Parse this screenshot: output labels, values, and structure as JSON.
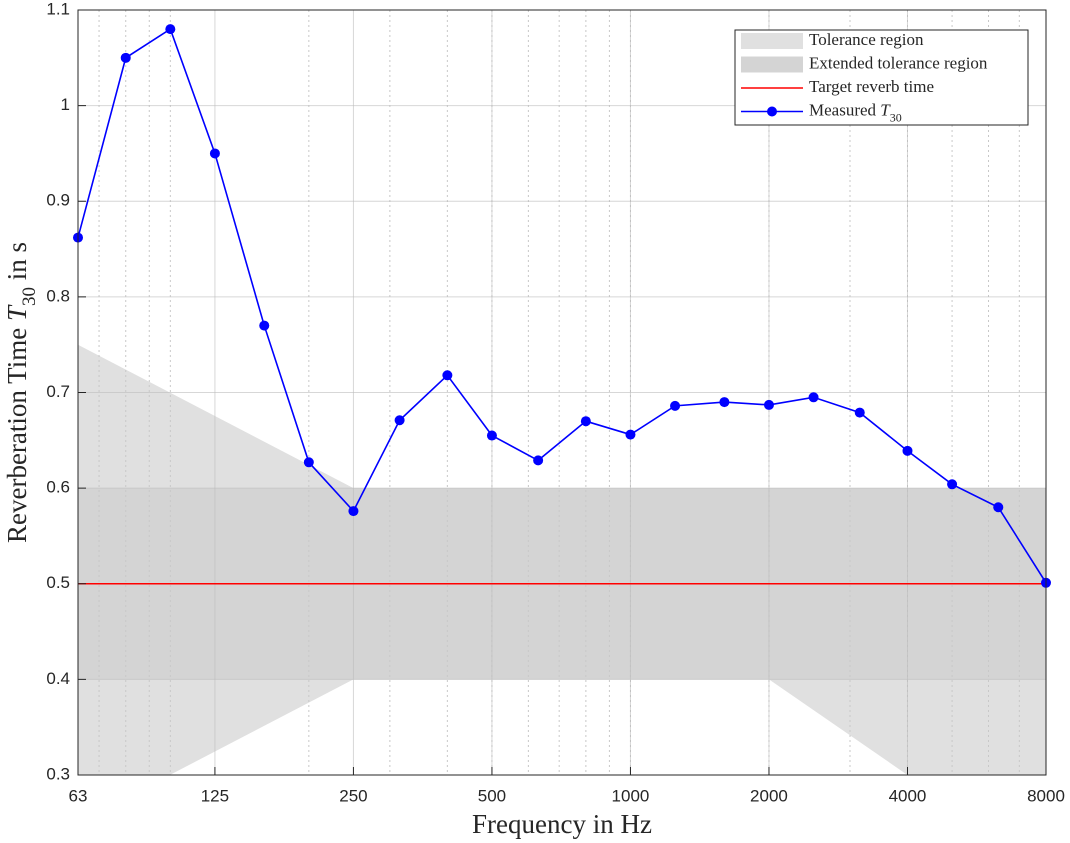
{
  "chart_data": {
    "type": "line",
    "xlabel": "Frequency in Hz",
    "ylabel": [
      "Reverberation Time ",
      "T",
      "30",
      " in s"
    ],
    "xscale": "log",
    "xlim": [
      63,
      8000
    ],
    "ylim": [
      0.3,
      1.1
    ],
    "xticks": [
      63,
      125,
      250,
      500,
      1000,
      2000,
      4000,
      8000
    ],
    "yticks": [
      0.3,
      0.4,
      0.5,
      0.6,
      0.7,
      0.8,
      0.9,
      1,
      1.1
    ],
    "grid": true,
    "minor_grid": true,
    "legend": "upper right",
    "regions": [
      {
        "name": "Tolerance region",
        "color": "#e0e0e0",
        "x": [
          63,
          250,
          2000,
          8000
        ],
        "upper": [
          0.75,
          0.6,
          0.6,
          0.6
        ],
        "lower": [
          0.25,
          0.4,
          0.4,
          0.2
        ]
      },
      {
        "name": "Extended tolerance region",
        "color": "#d4d4d4",
        "x": [
          63,
          8000
        ],
        "upper": [
          0.6,
          0.6
        ],
        "lower": [
          0.4,
          0.4
        ]
      }
    ],
    "series": [
      {
        "name": "Target reverb time",
        "color": "#ff0000",
        "markers": false,
        "x": [
          63,
          8000
        ],
        "values": [
          0.5,
          0.5
        ]
      },
      {
        "name": [
          "Measured ",
          "T",
          "30"
        ],
        "color": "#0000ff",
        "markers": true,
        "x": [
          63,
          80,
          100,
          125,
          160,
          200,
          250,
          315,
          400,
          500,
          630,
          800,
          1000,
          1250,
          1600,
          2000,
          2500,
          3150,
          4000,
          5000,
          6300,
          8000
        ],
        "values": [
          0.862,
          1.05,
          1.08,
          0.95,
          0.77,
          0.627,
          0.576,
          0.671,
          0.718,
          0.655,
          0.629,
          0.67,
          0.656,
          0.686,
          0.69,
          0.687,
          0.695,
          0.679,
          0.639,
          0.604,
          0.58,
          0.501
        ]
      }
    ]
  }
}
